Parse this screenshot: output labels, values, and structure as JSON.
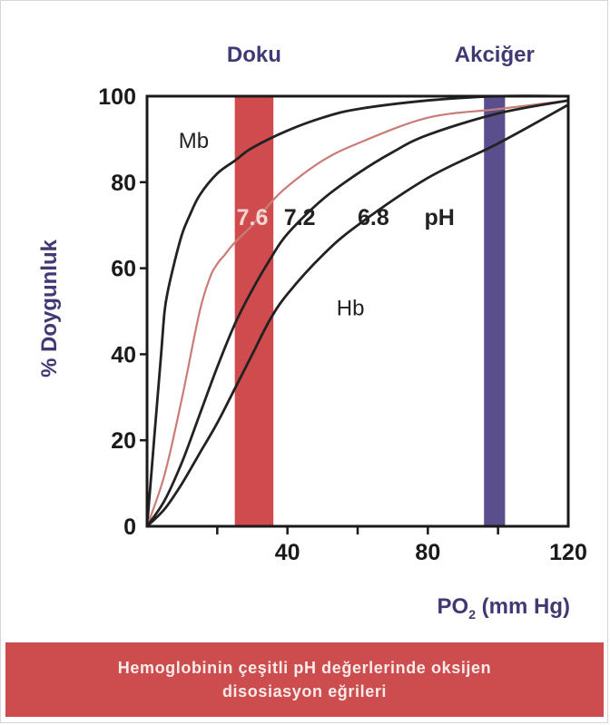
{
  "chart_data": {
    "type": "line",
    "title": "",
    "xlabel": "PO₂ (mm Hg)",
    "xlabel_main": "PO",
    "xlabel_sub": "2",
    "xlabel_rest": " (mm Hg)",
    "ylabel": "% Doygunluk",
    "xlim": [
      0,
      120
    ],
    "ylim": [
      0,
      100
    ],
    "x_ticks": [
      20,
      40,
      60,
      80,
      100
    ],
    "x_tick_labels": [
      {
        "value": 40,
        "label": "40"
      },
      {
        "value": 80,
        "label": "80"
      },
      {
        "value": 120,
        "label": "120"
      }
    ],
    "y_tick_labels": [
      {
        "value": 0,
        "label": "0"
      },
      {
        "value": 20,
        "label": "20"
      },
      {
        "value": 40,
        "label": "40"
      },
      {
        "value": 60,
        "label": "60"
      },
      {
        "value": 80,
        "label": "80"
      },
      {
        "value": 100,
        "label": "100"
      }
    ],
    "grid": false,
    "bands": [
      {
        "label": "Doku",
        "x_from": 25,
        "x_to": 36,
        "color": "#d04b4e"
      },
      {
        "label": "Akciğer",
        "x_from": 96,
        "x_to": 102,
        "color": "#5a4f8c"
      }
    ],
    "band_label_color": "#3f3a73",
    "series": [
      {
        "name": "Mb",
        "color": "#222222",
        "x": [
          0,
          2,
          4,
          5,
          6,
          8,
          10,
          12,
          15,
          20,
          25,
          30,
          40,
          50,
          60,
          80,
          100,
          120
        ],
        "y": [
          0,
          20,
          40,
          50,
          55,
          62,
          68,
          72,
          77,
          82,
          85,
          88,
          92,
          95,
          97,
          99,
          100,
          100
        ]
      },
      {
        "name": "7.6",
        "color": "#c97c78",
        "x": [
          0,
          5,
          10,
          15,
          18,
          20,
          22,
          25,
          30,
          35,
          40,
          50,
          60,
          80,
          100,
          120
        ],
        "y": [
          0,
          12,
          30,
          50,
          58,
          61,
          63,
          66,
          70,
          75,
          79,
          85,
          89,
          95,
          97,
          99
        ]
      },
      {
        "name": "7.2",
        "color": "#222222",
        "x": [
          0,
          5,
          10,
          15,
          20,
          25,
          30,
          35,
          40,
          50,
          60,
          70,
          80,
          100,
          120
        ],
        "y": [
          0,
          6,
          15,
          26,
          37,
          47,
          55,
          62,
          68,
          76,
          82,
          87,
          91,
          96,
          99
        ]
      },
      {
        "name": "6.8",
        "color": "#222222",
        "x": [
          0,
          5,
          10,
          15,
          20,
          25,
          30,
          35,
          40,
          50,
          60,
          80,
          100,
          120
        ],
        "y": [
          0,
          4,
          10,
          17,
          24,
          32,
          40,
          48,
          54,
          63,
          70,
          81,
          89,
          98
        ]
      }
    ],
    "annotations": [
      {
        "text": "Mb",
        "x": 9,
        "y": 88,
        "color": "#222222",
        "bold": false
      },
      {
        "text": "7.6",
        "x": 25.5,
        "y": 70,
        "color": "#f3d6d4",
        "bold": true
      },
      {
        "text": "7.2",
        "x": 39,
        "y": 70,
        "color": "#222222",
        "bold": true
      },
      {
        "text": "6.8",
        "x": 60,
        "y": 70,
        "color": "#222222",
        "bold": true
      },
      {
        "text": "pH",
        "x": 79,
        "y": 70,
        "color": "#222222",
        "bold": true
      },
      {
        "text": "Hb",
        "x": 54,
        "y": 49,
        "color": "#222222",
        "bold": false
      }
    ]
  },
  "caption": {
    "line1": "Hemoglobinin çeşitli pH değerlerinde oksijen",
    "line2": "disosiasyon eğrileri"
  }
}
